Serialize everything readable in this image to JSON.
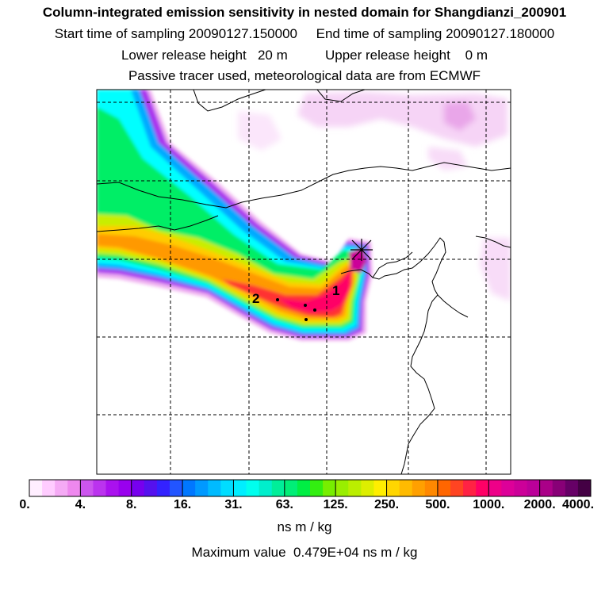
{
  "title": {
    "line1": "Column-integrated emission sensitivity in nested domain for Shangdianzi_200901",
    "line2": "Start time of sampling 20090127.150000     End time of sampling 20090127.180000",
    "line3": "Lower release height   20 m          Upper release height    0 m",
    "line4": "Passive tracer used, meteorological data are from ECMWF"
  },
  "chart_data": {
    "type": "heatmap",
    "title": "Column-integrated emission sensitivity in nested domain for Shangdianzi_200901",
    "colorbar": {
      "ticks": [
        "0.",
        "4.",
        "8.",
        "16.",
        "31.",
        "63.",
        "125.",
        "250.",
        "500.",
        "1000.",
        "2000.",
        "4000."
      ],
      "colors": [
        "#ffeeff",
        "#ffccff",
        "#f5aaf5",
        "#ee88ee",
        "#cc55ee",
        "#bb33ee",
        "#aa11ee",
        "#9900ee",
        "#7700ee",
        "#5511ee",
        "#3322ff",
        "#2255ff",
        "#0077ff",
        "#0099ff",
        "#00bbff",
        "#00ddff",
        "#00eeff",
        "#00ffee",
        "#00eecc",
        "#00ee99",
        "#00ee77",
        "#00ee44",
        "#33ee11",
        "#77ee00",
        "#99ee00",
        "#bbee00",
        "#ddee00",
        "#ffee00",
        "#ffd600",
        "#ffbb00",
        "#ffa000",
        "#ff8800",
        "#ff6600",
        "#ff4422",
        "#ff2244",
        "#ff0066",
        "#ee0088",
        "#dd0099",
        "#cc0099",
        "#bb0099",
        "#aa0088",
        "#880077",
        "#660066",
        "#440044"
      ]
    },
    "units": "ns m / kg",
    "max_value_text": "Maximum value  0.479E+04 ns m / kg",
    "receptor": "Shangdianzi",
    "cluster_labels": [
      "1",
      "2"
    ]
  }
}
